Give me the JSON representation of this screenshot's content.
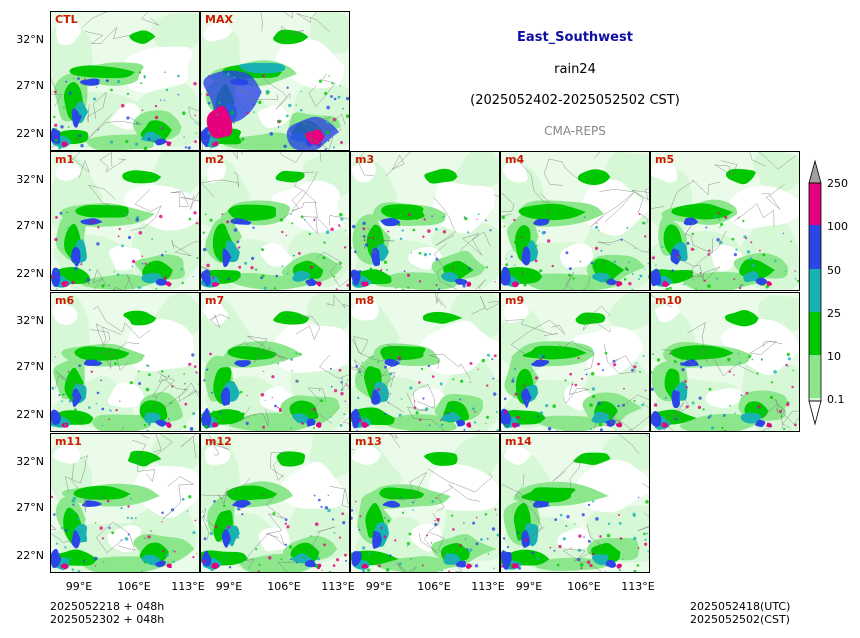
{
  "header": {
    "region": "East_Southwest",
    "variable": "rain24",
    "period": "(2025052402-2025052502 CST)",
    "model": "CMA-REPS"
  },
  "panels": [
    {
      "label": "CTL"
    },
    {
      "label": "MAX"
    },
    {
      "label": "m1"
    },
    {
      "label": "m2"
    },
    {
      "label": "m3"
    },
    {
      "label": "m4"
    },
    {
      "label": "m5"
    },
    {
      "label": "m6"
    },
    {
      "label": "m7"
    },
    {
      "label": "m8"
    },
    {
      "label": "m9"
    },
    {
      "label": "m10"
    },
    {
      "label": "m11"
    },
    {
      "label": "m12"
    },
    {
      "label": "m13"
    },
    {
      "label": "m14"
    }
  ],
  "axes": {
    "lat_labels": [
      "32°N",
      "27°N",
      "22°N"
    ],
    "lon_labels": [
      "99°E",
      "106°E",
      "113°E"
    ]
  },
  "colorbar": {
    "levels": [
      "250",
      "100",
      "50",
      "25",
      "10",
      "0.1"
    ],
    "colors": [
      "#e6007e",
      "#2a46e6",
      "#19b2b2",
      "#00c800",
      "#8ce68c",
      "#d7f8d7"
    ]
  },
  "footer": {
    "init_left_1": "2025052218  +  048h",
    "init_left_2": "2025052302  +  048h",
    "valid_right_1": "2025052418(UTC)",
    "valid_right_2": "2025052502(CST)"
  }
}
